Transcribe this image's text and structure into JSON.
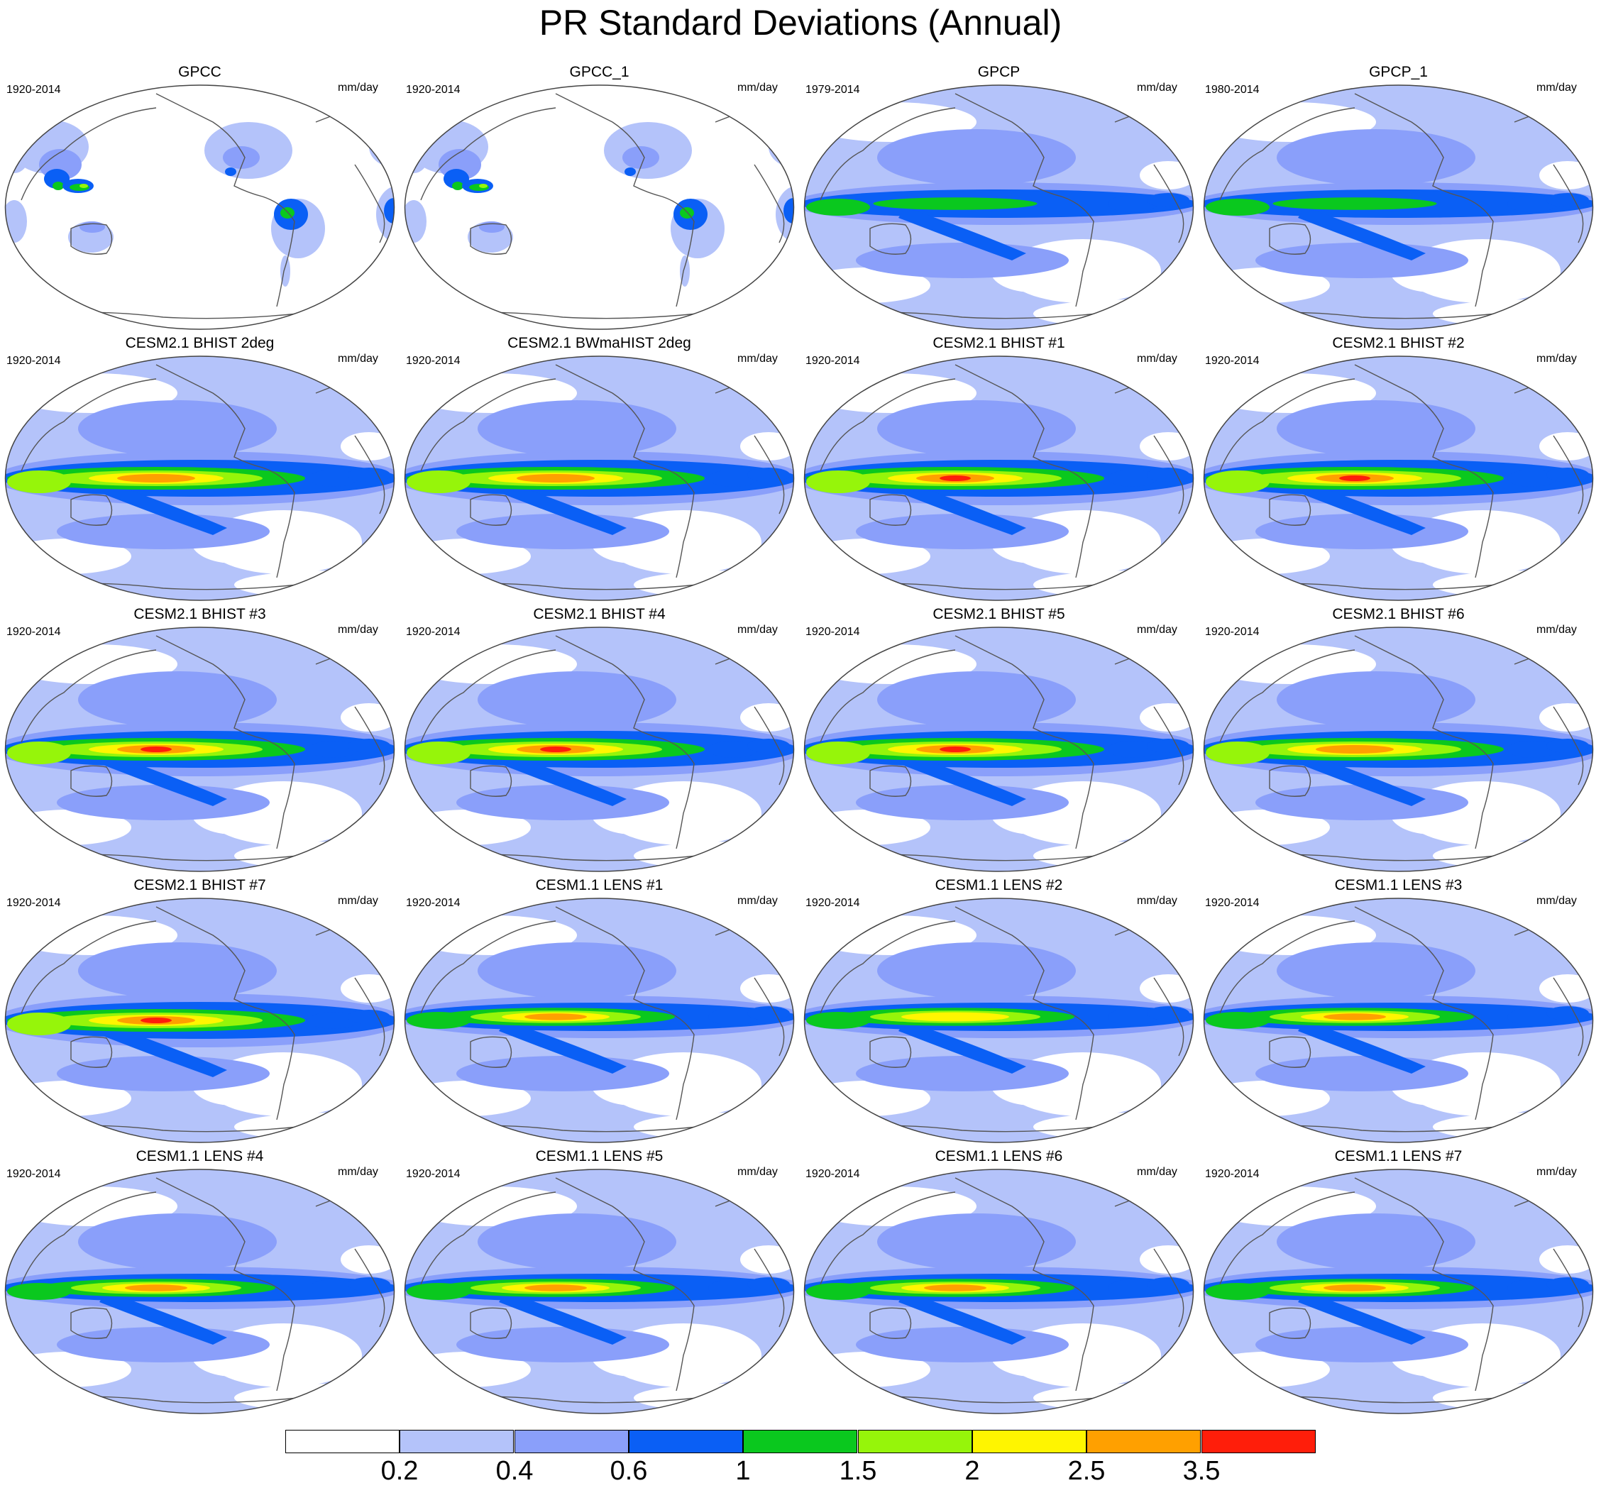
{
  "title": "PR Standard Deviations (Annual)",
  "panels": [
    {
      "title": "GPCC",
      "period": "1920-2014",
      "units": "mm/day",
      "source": "land"
    },
    {
      "title": "GPCC_1",
      "period": "1920-2014",
      "units": "mm/day",
      "source": "land"
    },
    {
      "title": "GPCP",
      "period": "1979-2014",
      "units": "mm/day",
      "source": "obs",
      "peak": 4
    },
    {
      "title": "GPCP_1",
      "period": "1980-2014",
      "units": "mm/day",
      "source": "obs",
      "peak": 4
    },
    {
      "title": "CESM2.1 BHIST 2deg",
      "period": "1920-2014",
      "units": "mm/day",
      "source": "cesm2",
      "peak": 7
    },
    {
      "title": "CESM2.1 BWmaHIST 2deg",
      "period": "1920-2014",
      "units": "mm/day",
      "source": "cesm2",
      "peak": 7
    },
    {
      "title": "CESM2.1 BHIST #1",
      "period": "1920-2014",
      "units": "mm/day",
      "source": "cesm2",
      "peak": 8
    },
    {
      "title": "CESM2.1 BHIST #2",
      "period": "1920-2014",
      "units": "mm/day",
      "source": "cesm2",
      "peak": 8
    },
    {
      "title": "CESM2.1 BHIST #3",
      "period": "1920-2014",
      "units": "mm/day",
      "source": "cesm2",
      "peak": 8
    },
    {
      "title": "CESM2.1 BHIST #4",
      "period": "1920-2014",
      "units": "mm/day",
      "source": "cesm2",
      "peak": 8
    },
    {
      "title": "CESM2.1 BHIST #5",
      "period": "1920-2014",
      "units": "mm/day",
      "source": "cesm2",
      "peak": 8
    },
    {
      "title": "CESM2.1 BHIST #6",
      "period": "1920-2014",
      "units": "mm/day",
      "source": "cesm2",
      "peak": 7
    },
    {
      "title": "CESM2.1 BHIST #7",
      "period": "1920-2014",
      "units": "mm/day",
      "source": "cesm2",
      "peak": 8
    },
    {
      "title": "CESM1.1 LENS #1",
      "period": "1920-2014",
      "units": "mm/day",
      "source": "cesm1",
      "peak": 7
    },
    {
      "title": "CESM1.1 LENS #2",
      "period": "1920-2014",
      "units": "mm/day",
      "source": "cesm1",
      "peak": 6
    },
    {
      "title": "CESM1.1 LENS #3",
      "period": "1920-2014",
      "units": "mm/day",
      "source": "cesm1",
      "peak": 7
    },
    {
      "title": "CESM1.1 LENS #4",
      "period": "1920-2014",
      "units": "mm/day",
      "source": "cesm1",
      "peak": 7
    },
    {
      "title": "CESM1.1 LENS #5",
      "period": "1920-2014",
      "units": "mm/day",
      "source": "cesm1",
      "peak": 7
    },
    {
      "title": "CESM1.1 LENS #6",
      "period": "1920-2014",
      "units": "mm/day",
      "source": "cesm1",
      "peak": 7
    },
    {
      "title": "CESM1.1 LENS #7",
      "period": "1920-2014",
      "units": "mm/day",
      "source": "cesm1",
      "peak": 7
    }
  ],
  "colorbar": {
    "colors": [
      "#ffffff",
      "#b4c3fa",
      "#8a9ffa",
      "#0a5ff5",
      "#0ac81e",
      "#96f50a",
      "#fff500",
      "#ffa000",
      "#ff1e0a"
    ],
    "labels": [
      "0.2",
      "0.4",
      "0.6",
      "1",
      "1.5",
      "2",
      "2.5",
      "3.5"
    ]
  }
}
